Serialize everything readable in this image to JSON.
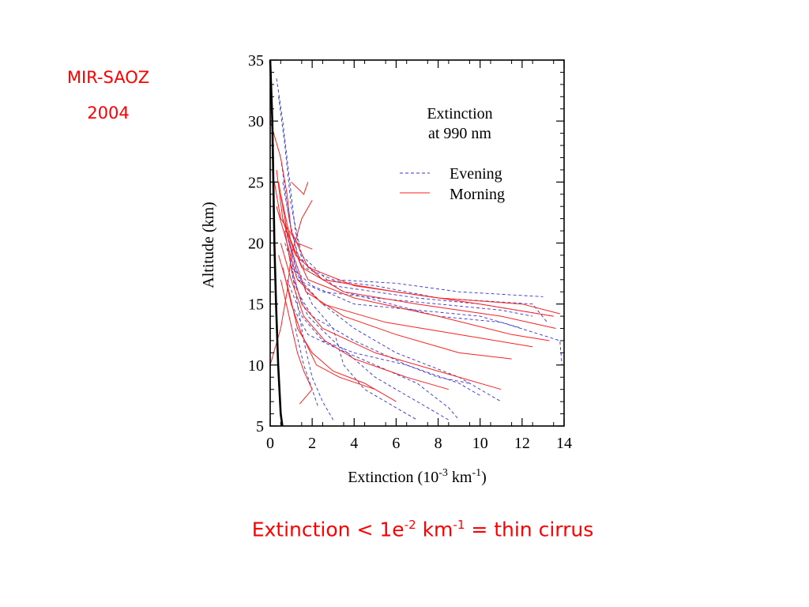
{
  "slide": {
    "title_line1": "MIR-SAOZ",
    "title_line2": "2004",
    "footnote": {
      "prefix": "Extinction < 1e",
      "exp1": "-2",
      "mid": " km",
      "exp2": "-1",
      "suffix": " = thin cirrus"
    }
  },
  "chart_data": {
    "type": "line",
    "annotation": [
      "Extinction",
      "at 990 nm"
    ],
    "xlabel": {
      "text": "Extinction (10",
      "exp1": "-3",
      "mid": " km",
      "exp2": "-1",
      "end": ")"
    },
    "ylabel": "Altitude (km)",
    "xlim": [
      0,
      14
    ],
    "ylim": [
      5,
      35
    ],
    "x_ticks": [
      0,
      2,
      4,
      6,
      8,
      10,
      12,
      14
    ],
    "y_ticks": [
      5,
      10,
      15,
      20,
      25,
      30,
      35
    ],
    "legend_position": "upper-right",
    "colors": {
      "evening": "#3333cc",
      "morning": "#ff2020",
      "threshold": "#000000"
    },
    "series": [
      {
        "name": "Evening",
        "style": "dashed",
        "profiles": [
          [
            [
              0.3,
              33.5
            ],
            [
              0.6,
              30
            ],
            [
              1.0,
              24
            ],
            [
              1.2,
              21
            ],
            [
              1.6,
              18
            ],
            [
              3.0,
              17
            ],
            [
              6.0,
              16.7
            ],
            [
              9.0,
              16.0
            ],
            [
              13.0,
              15.6
            ]
          ],
          [
            [
              0.4,
              32
            ],
            [
              0.7,
              28
            ],
            [
              1.0,
              23
            ],
            [
              1.5,
              19
            ],
            [
              3.0,
              16.5
            ],
            [
              7.0,
              15.5
            ],
            [
              10.0,
              15.0
            ],
            [
              13.5,
              14.0
            ]
          ],
          [
            [
              0.5,
              27
            ],
            [
              0.9,
              22
            ],
            [
              1.3,
              19
            ],
            [
              2.5,
              17
            ],
            [
              5.0,
              16.5
            ],
            [
              8.0,
              15.5
            ],
            [
              12.5,
              15.0
            ],
            [
              13.2,
              13.5
            ]
          ],
          [
            [
              0.6,
              25
            ],
            [
              1.0,
              21
            ],
            [
              1.5,
              18
            ],
            [
              3.5,
              16
            ],
            [
              8.0,
              14.0
            ],
            [
              11.0,
              13.5
            ],
            [
              13.8,
              12.0
            ],
            [
              13.9,
              10.0
            ]
          ],
          [
            [
              0.5,
              24
            ],
            [
              0.9,
              20
            ],
            [
              1.4,
              17
            ],
            [
              2.5,
              15
            ],
            [
              4.0,
              13
            ],
            [
              6.0,
              11
            ],
            [
              9.0,
              9
            ],
            [
              11.0,
              7
            ]
          ],
          [
            [
              0.6,
              22
            ],
            [
              1.2,
              18
            ],
            [
              2.0,
              15
            ],
            [
              3.0,
              13
            ],
            [
              3.5,
              10
            ],
            [
              4.5,
              8
            ],
            [
              6.0,
              6.5
            ],
            [
              7.0,
              5.5
            ]
          ],
          [
            [
              0.7,
              21
            ],
            [
              1.0,
              18
            ],
            [
              1.3,
              15
            ],
            [
              1.6,
              12
            ],
            [
              2.0,
              9
            ],
            [
              2.5,
              7
            ],
            [
              3.0,
              5.5
            ]
          ],
          [
            [
              0.8,
              20
            ],
            [
              1.1,
              17
            ],
            [
              1.8,
              14
            ],
            [
              3.0,
              12
            ],
            [
              5.0,
              9
            ],
            [
              7.0,
              7
            ],
            [
              8.5,
              5.5
            ]
          ],
          [
            [
              0.9,
              19
            ],
            [
              1.3,
              16
            ],
            [
              2.0,
              14
            ],
            [
              4.0,
              12
            ],
            [
              6.5,
              10
            ],
            [
              9.0,
              8.5
            ],
            [
              10.0,
              7.5
            ]
          ],
          [
            [
              1.0,
              18
            ],
            [
              2.0,
              16.5
            ],
            [
              4.0,
              15
            ],
            [
              7.0,
              14.5
            ],
            [
              10.0,
              14.0
            ],
            [
              12.0,
              13.0
            ]
          ],
          [
            [
              0.7,
              20
            ],
            [
              1.3,
              17
            ],
            [
              2.5,
              16
            ],
            [
              5.0,
              15.5
            ],
            [
              8.0,
              15.0
            ],
            [
              11.0,
              14.5
            ],
            [
              12.5,
              14.0
            ]
          ],
          [
            [
              0.8,
              17
            ],
            [
              1.5,
              14
            ],
            [
              2.5,
              12
            ],
            [
              4.0,
              11
            ],
            [
              6.5,
              10
            ],
            [
              8.0,
              9
            ],
            [
              9.5,
              8.5
            ]
          ],
          [
            [
              1.0,
              15
            ],
            [
              1.8,
              12.5
            ],
            [
              3.0,
              11.5
            ],
            [
              5.0,
              10
            ],
            [
              7.0,
              8.5
            ],
            [
              8.5,
              6.5
            ],
            [
              9.0,
              5.5
            ]
          ],
          [
            [
              1.2,
              13
            ],
            [
              1.6,
              10
            ],
            [
              2.0,
              8
            ],
            [
              2.3,
              6.5
            ]
          ]
        ]
      },
      {
        "name": "Morning",
        "style": "solid",
        "profiles": [
          [
            [
              0.0,
              30
            ],
            [
              0.5,
              27
            ],
            [
              0.8,
              24
            ],
            [
              1.0,
              21
            ],
            [
              1.8,
              18
            ],
            [
              4.0,
              16.5
            ],
            [
              8.0,
              15.5
            ],
            [
              12.0,
              15.0
            ],
            [
              13.8,
              14.2
            ]
          ],
          [
            [
              0.3,
              26
            ],
            [
              0.6,
              22
            ],
            [
              1.2,
              19
            ],
            [
              2.5,
              17
            ],
            [
              6.0,
              16
            ],
            [
              10.0,
              15
            ],
            [
              13.5,
              14.0
            ]
          ],
          [
            [
              0.4,
              25
            ],
            [
              0.8,
              21
            ],
            [
              1.5,
              18
            ],
            [
              3.5,
              16
            ],
            [
              7.0,
              15.0
            ],
            [
              11.0,
              14.0
            ],
            [
              13.6,
              13.0
            ]
          ],
          [
            [
              0.5,
              24
            ],
            [
              1.0,
              20
            ],
            [
              1.8,
              17
            ],
            [
              4.0,
              15.5
            ],
            [
              8.0,
              14.0
            ],
            [
              11.5,
              12.5
            ],
            [
              13.3,
              12.0
            ]
          ],
          [
            [
              0.3,
              23
            ],
            [
              0.8,
              20
            ],
            [
              1.3,
              17
            ],
            [
              2.5,
              15
            ],
            [
              5.5,
              13.5
            ],
            [
              9.0,
              12.5
            ],
            [
              12.5,
              11.5
            ]
          ],
          [
            [
              0.6,
              22
            ],
            [
              1.1,
              19
            ],
            [
              1.7,
              16
            ],
            [
              3.5,
              14
            ],
            [
              6.0,
              12.5
            ],
            [
              9.0,
              11.0
            ],
            [
              11.5,
              10.5
            ]
          ],
          [
            [
              0.7,
              21
            ],
            [
              1.0,
              18
            ],
            [
              1.5,
              15
            ],
            [
              2.5,
              13
            ],
            [
              5.0,
              11
            ],
            [
              8.0,
              9.5
            ],
            [
              11.0,
              8.0
            ]
          ],
          [
            [
              0.5,
              20
            ],
            [
              1.0,
              17
            ],
            [
              1.6,
              14
            ],
            [
              2.6,
              12
            ],
            [
              4.0,
              10.5
            ],
            [
              6.5,
              9
            ],
            [
              8.5,
              8.0
            ]
          ],
          [
            [
              0.4,
              19
            ],
            [
              0.9,
              16
            ],
            [
              1.3,
              13
            ],
            [
              2.0,
              11
            ],
            [
              3.0,
              9.5
            ],
            [
              4.5,
              8.5
            ],
            [
              6.0,
              7.0
            ]
          ],
          [
            [
              0.6,
              18
            ],
            [
              1.0,
              15
            ],
            [
              1.5,
              12.5
            ],
            [
              2.2,
              10
            ],
            [
              3.3,
              9
            ],
            [
              5.0,
              8.0
            ]
          ],
          [
            [
              0.5,
              17
            ],
            [
              0.9,
              14
            ],
            [
              1.3,
              11
            ],
            [
              1.6,
              9.5
            ],
            [
              2.0,
              8
            ],
            [
              1.4,
              6.8
            ]
          ],
          [
            [
              0.0,
              10
            ],
            [
              0.5,
              13
            ],
            [
              0.8,
              16
            ],
            [
              1.0,
              19
            ],
            [
              1.5,
              22
            ],
            [
              2.0,
              23.5
            ]
          ],
          [
            [
              0.2,
              25
            ],
            [
              0.5,
              22
            ],
            [
              1.3,
              20
            ],
            [
              2.0,
              19.5
            ]
          ],
          [
            [
              1.0,
              25
            ],
            [
              1.6,
              24
            ],
            [
              1.8,
              25
            ]
          ]
        ]
      }
    ],
    "threshold_curve": [
      [
        0.0,
        35
      ],
      [
        0.1,
        30
      ],
      [
        0.15,
        25
      ],
      [
        0.2,
        20
      ],
      [
        0.28,
        15
      ],
      [
        0.38,
        10
      ],
      [
        0.5,
        6
      ],
      [
        0.58,
        5
      ]
    ]
  }
}
